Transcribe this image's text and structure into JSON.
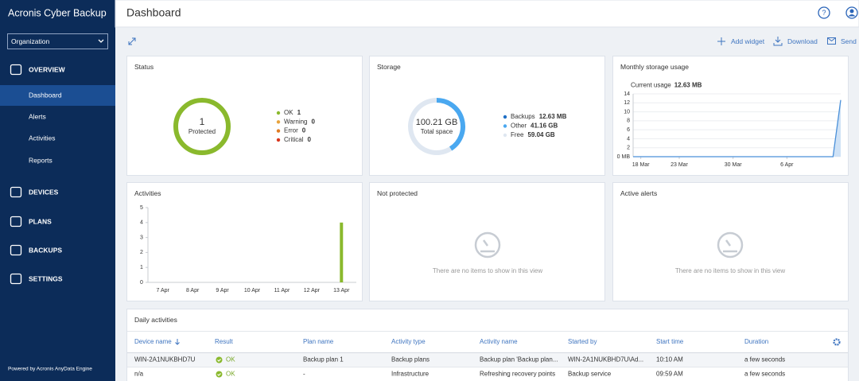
{
  "sidebar": {
    "brand": "Acronis Cyber Backup",
    "org": "Organization",
    "nav": [
      {
        "label": "OVERVIEW",
        "items": [
          "Dashboard",
          "Alerts",
          "Activities",
          "Reports"
        ]
      },
      {
        "label": "DEVICES"
      },
      {
        "label": "PLANS"
      },
      {
        "label": "BACKUPS"
      },
      {
        "label": "SETTINGS"
      }
    ],
    "footer": "Powered by Acronis AnyData Engine"
  },
  "header": {
    "title": "Dashboard"
  },
  "toolbar": [
    "Add widget",
    "Download",
    "Send"
  ],
  "status": {
    "title": "Status",
    "center_value": 1,
    "center_label": "Protected",
    "legend": [
      {
        "name": "OK",
        "value": 1,
        "color": "#8ab92d"
      },
      {
        "name": "Warning",
        "value": 0,
        "color": "#e8a33d"
      },
      {
        "name": "Error",
        "value": 0,
        "color": "#e07b22"
      },
      {
        "name": "Critical",
        "value": 0,
        "color": "#d9361e"
      }
    ]
  },
  "storage": {
    "title": "Storage",
    "center_value": "100.21 GB",
    "center_label": "Total space",
    "legend": [
      {
        "name": "Backups",
        "value": 0.01263,
        "value_label": "12.63 MB",
        "color": "#1f6fc5"
      },
      {
        "name": "Other",
        "value": 41.16,
        "value_label": "41.16 GB",
        "color": "#4aa8f0"
      },
      {
        "name": "Free",
        "value": 59.04,
        "value_label": "59.04 GB",
        "color": "#dfe7f1"
      }
    ]
  },
  "monthly": {
    "title": "Monthly storage usage",
    "current_label": "Current usage",
    "current": "12.63 MB",
    "type": "line",
    "color": "#4a90d9",
    "x": [
      "17 Mar",
      "12 Apr",
      "13 Apr"
    ],
    "values": [
      0,
      0,
      12.63
    ],
    "xlim": [
      "17 Mar",
      "13 Apr"
    ],
    "xticks": [
      "18 Mar",
      "23 Mar",
      "30 Mar",
      "6 Apr"
    ],
    "ylim": [
      0,
      14
    ],
    "yticks": [
      {
        "value": 0,
        "label": "0 MB"
      },
      2,
      4,
      6,
      8,
      10,
      12,
      14
    ],
    "grid": true
  },
  "activities": {
    "title": "Activities",
    "type": "bar",
    "color": "#8ab92d",
    "categories": [
      "7 Apr",
      "8 Apr",
      "9 Apr",
      "10 Apr",
      "11 Apr",
      "12 Apr",
      "13 Apr"
    ],
    "values": [
      0,
      0,
      0,
      0,
      0,
      0,
      4
    ],
    "ylim": [
      0,
      5
    ],
    "yticks": [
      0,
      1,
      2,
      3,
      4,
      5
    ]
  },
  "not_protected": {
    "title": "Not protected",
    "message": "There are no items to show in this view"
  },
  "active_alerts": {
    "title": "Active alerts",
    "message": "There are no items to show in this view"
  },
  "table": {
    "title": "Daily activities",
    "columns": [
      "Device name",
      "Result",
      "Plan name",
      "Activity type",
      "Activity name",
      "Started by",
      "Start time",
      "Duration"
    ],
    "rows": [
      [
        "WIN-2A1NUKBHD7U",
        "OK",
        "Backup plan 1",
        "Backup plans",
        "Backup plan 'Backup plan...",
        "WIN-2A1NUKBHD7U\\Ad...",
        "10:10 AM",
        "a few seconds"
      ],
      [
        "n/a",
        "OK",
        "-",
        "Infrastructure",
        "Refreshing recovery points",
        "Backup service",
        "09:59 AM",
        "a few seconds"
      ]
    ]
  }
}
